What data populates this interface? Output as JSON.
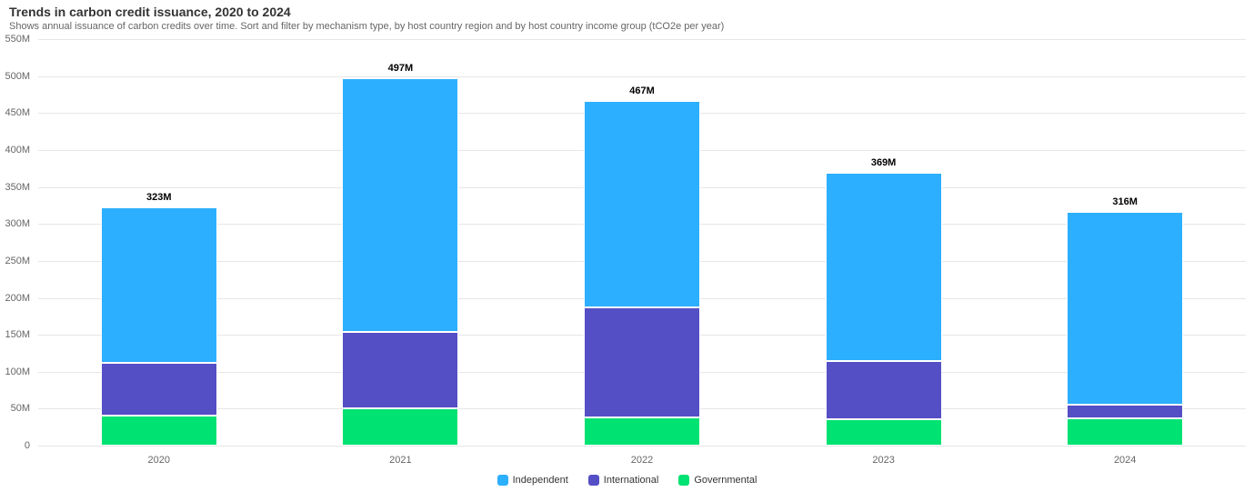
{
  "chart_data": {
    "type": "bar",
    "stacked": true,
    "title": "Trends in carbon credit issuance, 2020 to 2024",
    "subtitle": "Shows annual issuance of carbon credits over time. Sort and filter by mechanism type, by host country region and by host country income group (tCO2e per year)",
    "categories": [
      "2020",
      "2021",
      "2022",
      "2023",
      "2024"
    ],
    "series": [
      {
        "name": "Independent",
        "color": "#2CAFFE",
        "values": [
          211,
          343,
          280,
          255,
          261
        ]
      },
      {
        "name": "International",
        "color": "#544FC5",
        "values": [
          71,
          103,
          149,
          79,
          18
        ]
      },
      {
        "name": "Governmental",
        "color": "#00E272",
        "values": [
          41,
          51,
          38,
          35,
          37
        ]
      }
    ],
    "totals": [
      323,
      497,
      467,
      369,
      316
    ],
    "total_labels": [
      "323M",
      "497M",
      "467M",
      "369M",
      "316M"
    ],
    "xlabel": "",
    "ylabel": "",
    "ylim": [
      0,
      550
    ],
    "y_tick_step": 50,
    "y_tick_labels": [
      "0",
      "50M",
      "100M",
      "150M",
      "200M",
      "250M",
      "300M",
      "350M",
      "400M",
      "450M",
      "500M",
      "550M"
    ],
    "grid": true,
    "legend_position": "bottom"
  },
  "colors": {
    "background": "#FFFFFF",
    "grid": "#E6E6E6",
    "axis_text": "#666666",
    "title_text": "#333333",
    "subtitle_text": "#666666",
    "data_label_text": "#000000",
    "legend_text": "#333333"
  }
}
